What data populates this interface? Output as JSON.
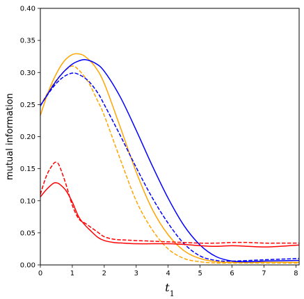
{
  "chart_data": {
    "type": "line",
    "title": "",
    "xlabel": "t",
    "xlabel_subscript": "1",
    "ylabel": "mutual information",
    "xlim": [
      0,
      8.1
    ],
    "ylim": [
      0,
      0.4
    ],
    "xticks": [
      0,
      1,
      2,
      3,
      4,
      5,
      6,
      7,
      8
    ],
    "yticks": [
      0.0,
      0.05,
      0.1,
      0.15,
      0.2,
      0.25,
      0.3,
      0.35,
      0.4
    ],
    "ytick_labels": [
      "0.00",
      "0.05",
      "0.10",
      "0.15",
      "0.20",
      "0.25",
      "0.30",
      "0.35",
      "0.40"
    ],
    "grid": false,
    "legend": "none",
    "series": [
      {
        "color": "#ffa500",
        "dash": "solid",
        "x": [
          0,
          0.25,
          0.5,
          0.75,
          1.0,
          1.2,
          1.4,
          1.7,
          2.0,
          2.5,
          3.0,
          3.5,
          4.0,
          4.5,
          5.0,
          5.5,
          6.0,
          7.0,
          8.1
        ],
        "y": [
          0.233,
          0.27,
          0.298,
          0.318,
          0.328,
          0.329,
          0.325,
          0.31,
          0.283,
          0.215,
          0.145,
          0.087,
          0.047,
          0.022,
          0.01,
          0.005,
          0.004,
          0.004,
          0.004
        ]
      },
      {
        "color": "#ffa500",
        "dash": "dashed",
        "x": [
          0,
          0.25,
          0.5,
          0.75,
          1.0,
          1.2,
          1.5,
          1.8,
          2.0,
          2.5,
          3.0,
          3.5,
          4.0,
          4.5,
          5.0,
          5.5,
          6.0,
          7.0,
          8.1
        ],
        "y": [
          0.248,
          0.27,
          0.288,
          0.302,
          0.31,
          0.304,
          0.285,
          0.255,
          0.233,
          0.165,
          0.1,
          0.055,
          0.025,
          0.01,
          0.005,
          0.003,
          0.003,
          0.003,
          0.003
        ]
      },
      {
        "color": "#0000ff",
        "dash": "solid",
        "x": [
          0,
          0.25,
          0.5,
          0.75,
          1.0,
          1.2,
          1.4,
          1.7,
          2.0,
          2.5,
          3.0,
          3.5,
          4.0,
          4.5,
          5.0,
          5.5,
          6.0,
          6.5,
          7.0,
          8.1
        ],
        "y": [
          0.248,
          0.268,
          0.287,
          0.302,
          0.313,
          0.318,
          0.32,
          0.315,
          0.302,
          0.262,
          0.21,
          0.155,
          0.104,
          0.061,
          0.031,
          0.013,
          0.006,
          0.005,
          0.006,
          0.007
        ]
      },
      {
        "color": "#0000ff",
        "dash": "dashed",
        "x": [
          0,
          0.25,
          0.5,
          0.75,
          1.0,
          1.2,
          1.5,
          1.8,
          2.0,
          2.5,
          3.0,
          3.5,
          4.0,
          4.5,
          5.0,
          5.5,
          6.0,
          7.0,
          8.1
        ],
        "y": [
          0.248,
          0.267,
          0.283,
          0.294,
          0.299,
          0.297,
          0.287,
          0.268,
          0.25,
          0.202,
          0.152,
          0.105,
          0.065,
          0.033,
          0.014,
          0.007,
          0.006,
          0.008,
          0.01
        ]
      },
      {
        "color": "#ff0000",
        "dash": "solid",
        "x": [
          0,
          0.2,
          0.4,
          0.5,
          0.6,
          0.8,
          1.0,
          1.2,
          1.4,
          1.6,
          1.8,
          2.0,
          2.3,
          2.6,
          3.0,
          3.5,
          4.0,
          4.5,
          5.0,
          5.5,
          6.0,
          6.5,
          7.0,
          7.5,
          8.1
        ],
        "y": [
          0.106,
          0.118,
          0.127,
          0.128,
          0.126,
          0.116,
          0.098,
          0.075,
          0.062,
          0.052,
          0.043,
          0.038,
          0.035,
          0.034,
          0.033,
          0.033,
          0.033,
          0.032,
          0.03,
          0.029,
          0.03,
          0.029,
          0.028,
          0.029,
          0.031
        ]
      },
      {
        "color": "#ff0000",
        "dash": "dashed",
        "x": [
          0,
          0.2,
          0.4,
          0.5,
          0.6,
          0.8,
          1.0,
          1.2,
          1.4,
          1.6,
          1.8,
          2.0,
          2.3,
          2.6,
          3.0,
          3.5,
          4.0,
          4.5,
          5.0,
          5.5,
          6.0,
          6.5,
          7.0,
          7.5,
          8.1
        ],
        "y": [
          0.11,
          0.14,
          0.157,
          0.16,
          0.154,
          0.126,
          0.093,
          0.072,
          0.065,
          0.058,
          0.051,
          0.044,
          0.04,
          0.039,
          0.038,
          0.037,
          0.036,
          0.035,
          0.034,
          0.034,
          0.035,
          0.035,
          0.034,
          0.034,
          0.034
        ]
      }
    ]
  }
}
